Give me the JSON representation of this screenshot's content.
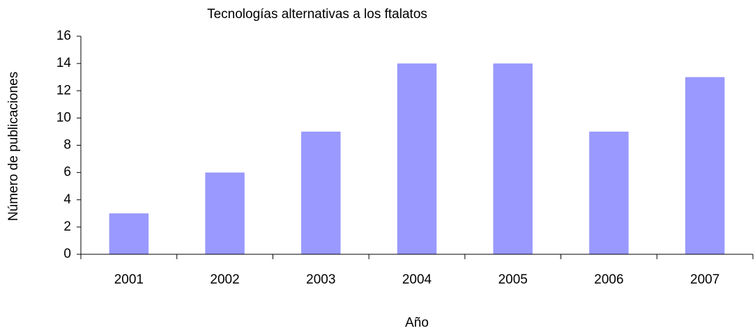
{
  "chart_data": {
    "type": "bar",
    "title": "Tecnologías alternativas a los ftalatos",
    "x_label": "Año",
    "y_label": "Número de publicaciones",
    "categories": [
      "2001",
      "2002",
      "2003",
      "2004",
      "2005",
      "2006",
      "2007"
    ],
    "values": [
      3,
      6,
      9,
      14,
      14,
      9,
      13
    ],
    "color": "#9999ff",
    "ylim": [
      0,
      16
    ],
    "yticks": [
      0,
      2,
      4,
      6,
      8,
      10,
      12,
      14,
      16
    ],
    "grid": false
  }
}
